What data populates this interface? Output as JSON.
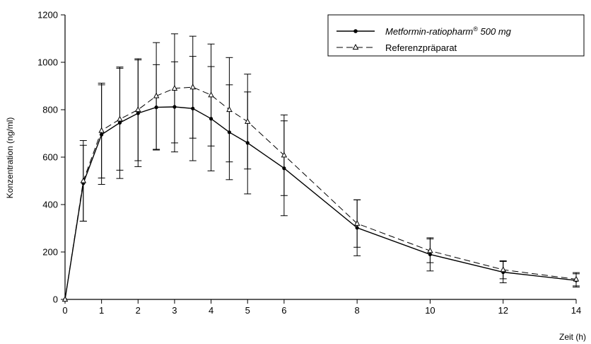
{
  "chart_data": {
    "type": "line",
    "xlabel": "Zeit (h)",
    "ylabel": "Konzentration (ng/ml)",
    "xlim": [
      0,
      14
    ],
    "ylim": [
      0,
      1200
    ],
    "x_ticks": [
      0,
      1,
      2,
      3,
      4,
      5,
      6,
      8,
      10,
      12,
      14
    ],
    "y_ticks": [
      0,
      200,
      400,
      600,
      800,
      1000,
      1200
    ],
    "grid": false,
    "legend_position": "top-right",
    "x": [
      0,
      0.5,
      1,
      1.5,
      2,
      2.5,
      3,
      3.5,
      4,
      4.5,
      5,
      6,
      8,
      10,
      12,
      14
    ],
    "series": [
      {
        "name": "Metformin-ratiopharm® 500 mg",
        "name_main": "Metformin-ratiopharm",
        "name_sup": "®",
        "name_tail": " 500 mg",
        "style": "solid",
        "marker": "filled-circle",
        "values": [
          0,
          490,
          695,
          745,
          785,
          810,
          812,
          805,
          762,
          705,
          660,
          553,
          302,
          190,
          115,
          80
        ],
        "error": [
          0,
          160,
          210,
          235,
          225,
          180,
          190,
          220,
          220,
          200,
          215,
          200,
          118,
          70,
          45,
          28
        ]
      },
      {
        "name": "Referenzpräparat",
        "style": "dashed",
        "marker": "open-triangle",
        "values": [
          0,
          500,
          712,
          760,
          800,
          858,
          890,
          895,
          862,
          800,
          750,
          608,
          320,
          205,
          125,
          85
        ],
        "error": [
          0,
          170,
          200,
          215,
          215,
          225,
          230,
          215,
          215,
          220,
          200,
          170,
          100,
          50,
          38,
          28
        ]
      }
    ]
  }
}
